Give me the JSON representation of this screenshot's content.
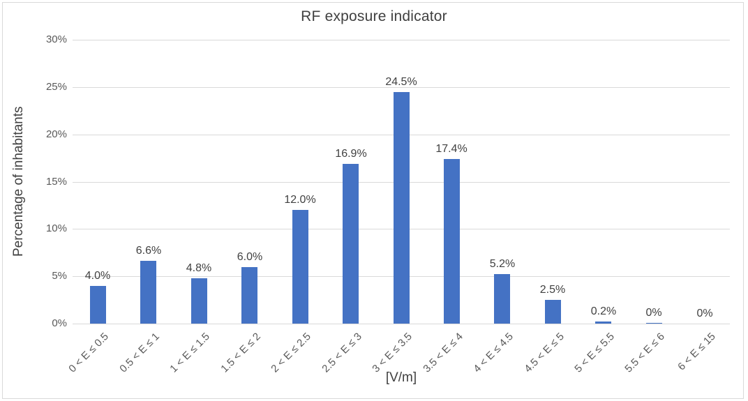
{
  "chart_data": {
    "type": "bar",
    "title": "RF exposure indicator",
    "xlabel": "[V/m]",
    "ylabel": "Percentage of inhabitants",
    "categories": [
      "0 < E ≤ 0.5",
      "0.5 < E ≤ 1",
      "1 < E ≤ 1.5",
      "1.5 < E ≤ 2",
      "2 < E ≤ 2.5",
      "2.5 < E ≤ 3",
      "3 < E ≤ 3.5",
      "3.5 < E ≤ 4",
      "4 < E ≤ 4.5",
      "4.5 < E ≤ 5",
      "5 < E ≤ 5.5",
      "5.5 < E ≤ 6",
      "6 < E ≤ 15"
    ],
    "values": [
      4.0,
      6.6,
      4.8,
      6.0,
      12.0,
      16.9,
      24.5,
      17.4,
      5.2,
      2.5,
      0.2,
      0.05,
      0
    ],
    "data_labels": [
      "4.0%",
      "6.6%",
      "4.8%",
      "6.0%",
      "12.0%",
      "16.9%",
      "24.5%",
      "17.4%",
      "5.2%",
      "2.5%",
      "0.2%",
      "0%",
      "0%"
    ],
    "y_ticks": [
      "0%",
      "5%",
      "10%",
      "15%",
      "20%",
      "25%",
      "30%"
    ],
    "ylim": [
      0,
      30
    ],
    "grid": true,
    "legend": "none",
    "bar_color": "#4472C4",
    "gridline_color": "#D9D9D9",
    "border_color": "#D9D9D9",
    "tick_text_color": "#595959",
    "title_text_color": "#404040"
  }
}
